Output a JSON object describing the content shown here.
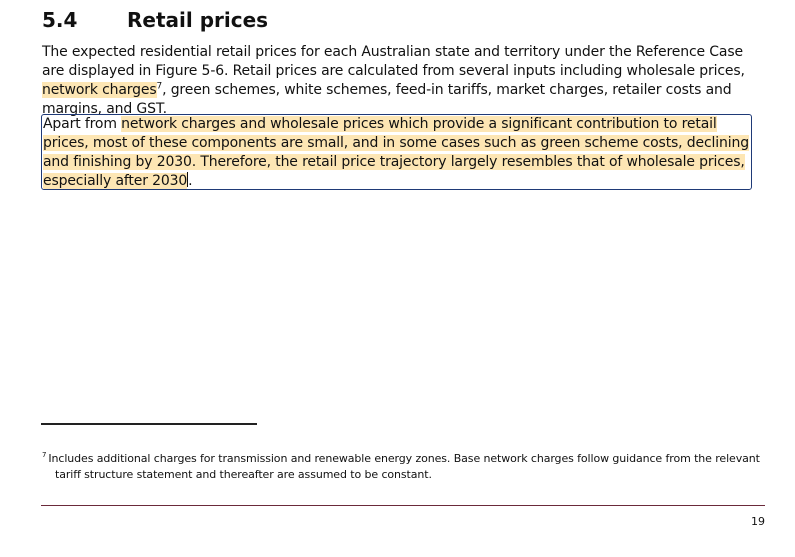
{
  "section": {
    "number": "5.4",
    "title": "Retail prices"
  },
  "paragraph1": {
    "before": "The expected residential retail prices for each Australian state and territory under the Reference Case are displayed in Figure 5-6. Retail prices are calculated from several inputs including wholesale prices, ",
    "highlight": "network charges",
    "footnote_ref": "7",
    "after": ", green schemes, white schemes, feed-in tariffs, market charges, retailer costs and margins, and GST."
  },
  "paragraph2": {
    "before": "Apart from ",
    "highlight": "network charges and wholesale prices which provide a significant contribution to retail prices, most of these components are small, and in some cases such as green scheme costs, declining and finishing by 2030. Therefore, the retail price trajectory largely resembles that of wholesale prices, especially after 2030",
    "after": "."
  },
  "footnote": {
    "marker": "7",
    "line1": "Includes additional charges for transmission and renewable energy zones. Base network charges follow guidance from the relevant",
    "line2": "tariff structure statement and thereafter are assumed to be constant."
  },
  "page_number": "19"
}
